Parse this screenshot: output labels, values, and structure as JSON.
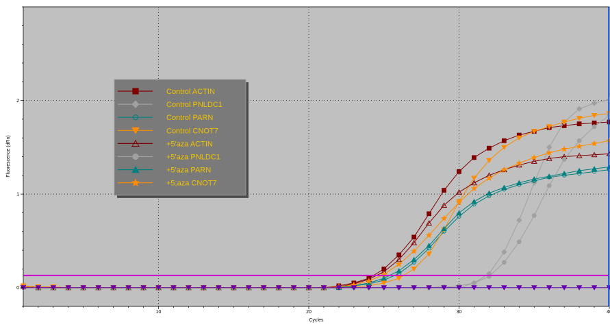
{
  "chart_data": {
    "type": "line",
    "title": "",
    "xlabel": "Cycles",
    "ylabel": "Fluorescence (dRn)",
    "xlim": [
      1,
      40
    ],
    "ylim": [
      -0.2,
      3
    ],
    "x_ticks": [
      10,
      20,
      30,
      40
    ],
    "y_ticks": [
      0,
      1,
      2
    ],
    "grid": true,
    "legend_position": "upper-left",
    "threshold": 0.13,
    "threshold_color": "#cc00cc",
    "plot_background": "#c0c0c0",
    "x": [
      1,
      2,
      3,
      4,
      5,
      6,
      7,
      8,
      9,
      10,
      11,
      12,
      13,
      14,
      15,
      16,
      17,
      18,
      19,
      20,
      21,
      22,
      23,
      24,
      25,
      26,
      27,
      28,
      29,
      30,
      31,
      32,
      33,
      34,
      35,
      36,
      37,
      38,
      39,
      40
    ],
    "series": [
      {
        "name": "Control ACTIN",
        "color": "#800000",
        "marker": "square-filled",
        "values": [
          0.01,
          0,
          0,
          0,
          0,
          0,
          0,
          0,
          0,
          0,
          0,
          0,
          0,
          0,
          0,
          0,
          0,
          0,
          0,
          0,
          0,
          0.02,
          0.05,
          0.1,
          0.2,
          0.35,
          0.54,
          0.79,
          1.04,
          1.24,
          1.39,
          1.49,
          1.57,
          1.63,
          1.67,
          1.71,
          1.73,
          1.75,
          1.76,
          1.77
        ]
      },
      {
        "name": "Control PNLDC1",
        "color": "#a0a0a0",
        "marker": "diamond-filled",
        "values": [
          0,
          0,
          0,
          0,
          0,
          0,
          0,
          0,
          0,
          0,
          0,
          0,
          0,
          0,
          0,
          0,
          0,
          0,
          0,
          0,
          0,
          0,
          0,
          0,
          0,
          0,
          0,
          0,
          0,
          0,
          0.05,
          0.15,
          0.38,
          0.72,
          1.12,
          1.5,
          1.77,
          1.91,
          1.97,
          2.01
        ]
      },
      {
        "name": "Control PARN",
        "color": "#008080",
        "marker": "circle-open",
        "values": [
          0.02,
          0.01,
          0,
          0,
          0,
          0,
          0,
          0,
          0,
          0,
          0,
          0,
          0,
          0,
          0,
          0,
          0,
          0,
          0,
          0,
          0,
          0,
          0.02,
          0.04,
          0.08,
          0.15,
          0.27,
          0.42,
          0.6,
          0.76,
          0.89,
          0.98,
          1.05,
          1.1,
          1.14,
          1.18,
          1.2,
          1.22,
          1.24,
          1.26
        ]
      },
      {
        "name": "Control CNOT7",
        "color": "#ff8c00",
        "marker": "triangle-down-filled",
        "values": [
          0.02,
          0.01,
          0.01,
          0,
          0,
          0,
          0,
          0,
          0,
          0,
          0,
          0,
          0,
          0,
          0,
          0,
          0,
          0,
          0,
          0,
          0,
          0,
          0.01,
          0.02,
          0.05,
          0.1,
          0.2,
          0.36,
          0.62,
          0.92,
          1.17,
          1.36,
          1.5,
          1.6,
          1.67,
          1.72,
          1.77,
          1.81,
          1.84,
          1.86
        ]
      },
      {
        "name": "+5'aza ACTIN",
        "color": "#800000",
        "marker": "triangle-open",
        "values": [
          0.01,
          0,
          0,
          0,
          0,
          0,
          0,
          0,
          0,
          0,
          0,
          0,
          0,
          0,
          0,
          0,
          0,
          0,
          0,
          0,
          0,
          0.01,
          0.04,
          0.09,
          0.17,
          0.3,
          0.48,
          0.69,
          0.88,
          1.02,
          1.12,
          1.2,
          1.26,
          1.31,
          1.35,
          1.38,
          1.4,
          1.41,
          1.42,
          1.43
        ]
      },
      {
        "name": "+5'aza PNLDC1",
        "color": "#a0a0a0",
        "marker": "circle-filled",
        "values": [
          0,
          0,
          0,
          0,
          0,
          0,
          0,
          0,
          0,
          0,
          0,
          0,
          0,
          0,
          0,
          0,
          0,
          0,
          0,
          0,
          0,
          0,
          0,
          0,
          0,
          0,
          0,
          0,
          0.01,
          0.02,
          0.05,
          0.12,
          0.27,
          0.49,
          0.77,
          1.09,
          1.37,
          1.57,
          1.72,
          1.84
        ]
      },
      {
        "name": "+5'aza PARN",
        "color": "#008080",
        "marker": "triangle-up-filled",
        "values": [
          0.01,
          0,
          0,
          0,
          0,
          0,
          0,
          0,
          0,
          0,
          0,
          0,
          0,
          0,
          0,
          0,
          0,
          0,
          0,
          0,
          0,
          0,
          0.02,
          0.05,
          0.1,
          0.18,
          0.3,
          0.45,
          0.63,
          0.8,
          0.92,
          1.01,
          1.07,
          1.12,
          1.16,
          1.19,
          1.22,
          1.25,
          1.27,
          1.29
        ]
      },
      {
        "name": "+5;aza CNOT7",
        "color": "#ff8c00",
        "marker": "star",
        "values": [
          0.01,
          0,
          0,
          0,
          0,
          0,
          0,
          0,
          0,
          0,
          0,
          0,
          0,
          0,
          0,
          0,
          0,
          0,
          0,
          0,
          0,
          0.01,
          0.03,
          0.07,
          0.14,
          0.25,
          0.39,
          0.56,
          0.74,
          0.91,
          1.06,
          1.17,
          1.26,
          1.33,
          1.39,
          1.44,
          1.48,
          1.51,
          1.54,
          1.57
        ]
      },
      {
        "name": "",
        "color": "#6600aa",
        "marker": "triangle-down-filled",
        "values": [
          0,
          0,
          0,
          0,
          0,
          0,
          0,
          0,
          0,
          0,
          0,
          0,
          0,
          0,
          0,
          0,
          0,
          0,
          0,
          0,
          0,
          0,
          0,
          0,
          0,
          0,
          0,
          0,
          0,
          0,
          0,
          0,
          0,
          0,
          0,
          0,
          0,
          0,
          0,
          0
        ]
      }
    ]
  }
}
